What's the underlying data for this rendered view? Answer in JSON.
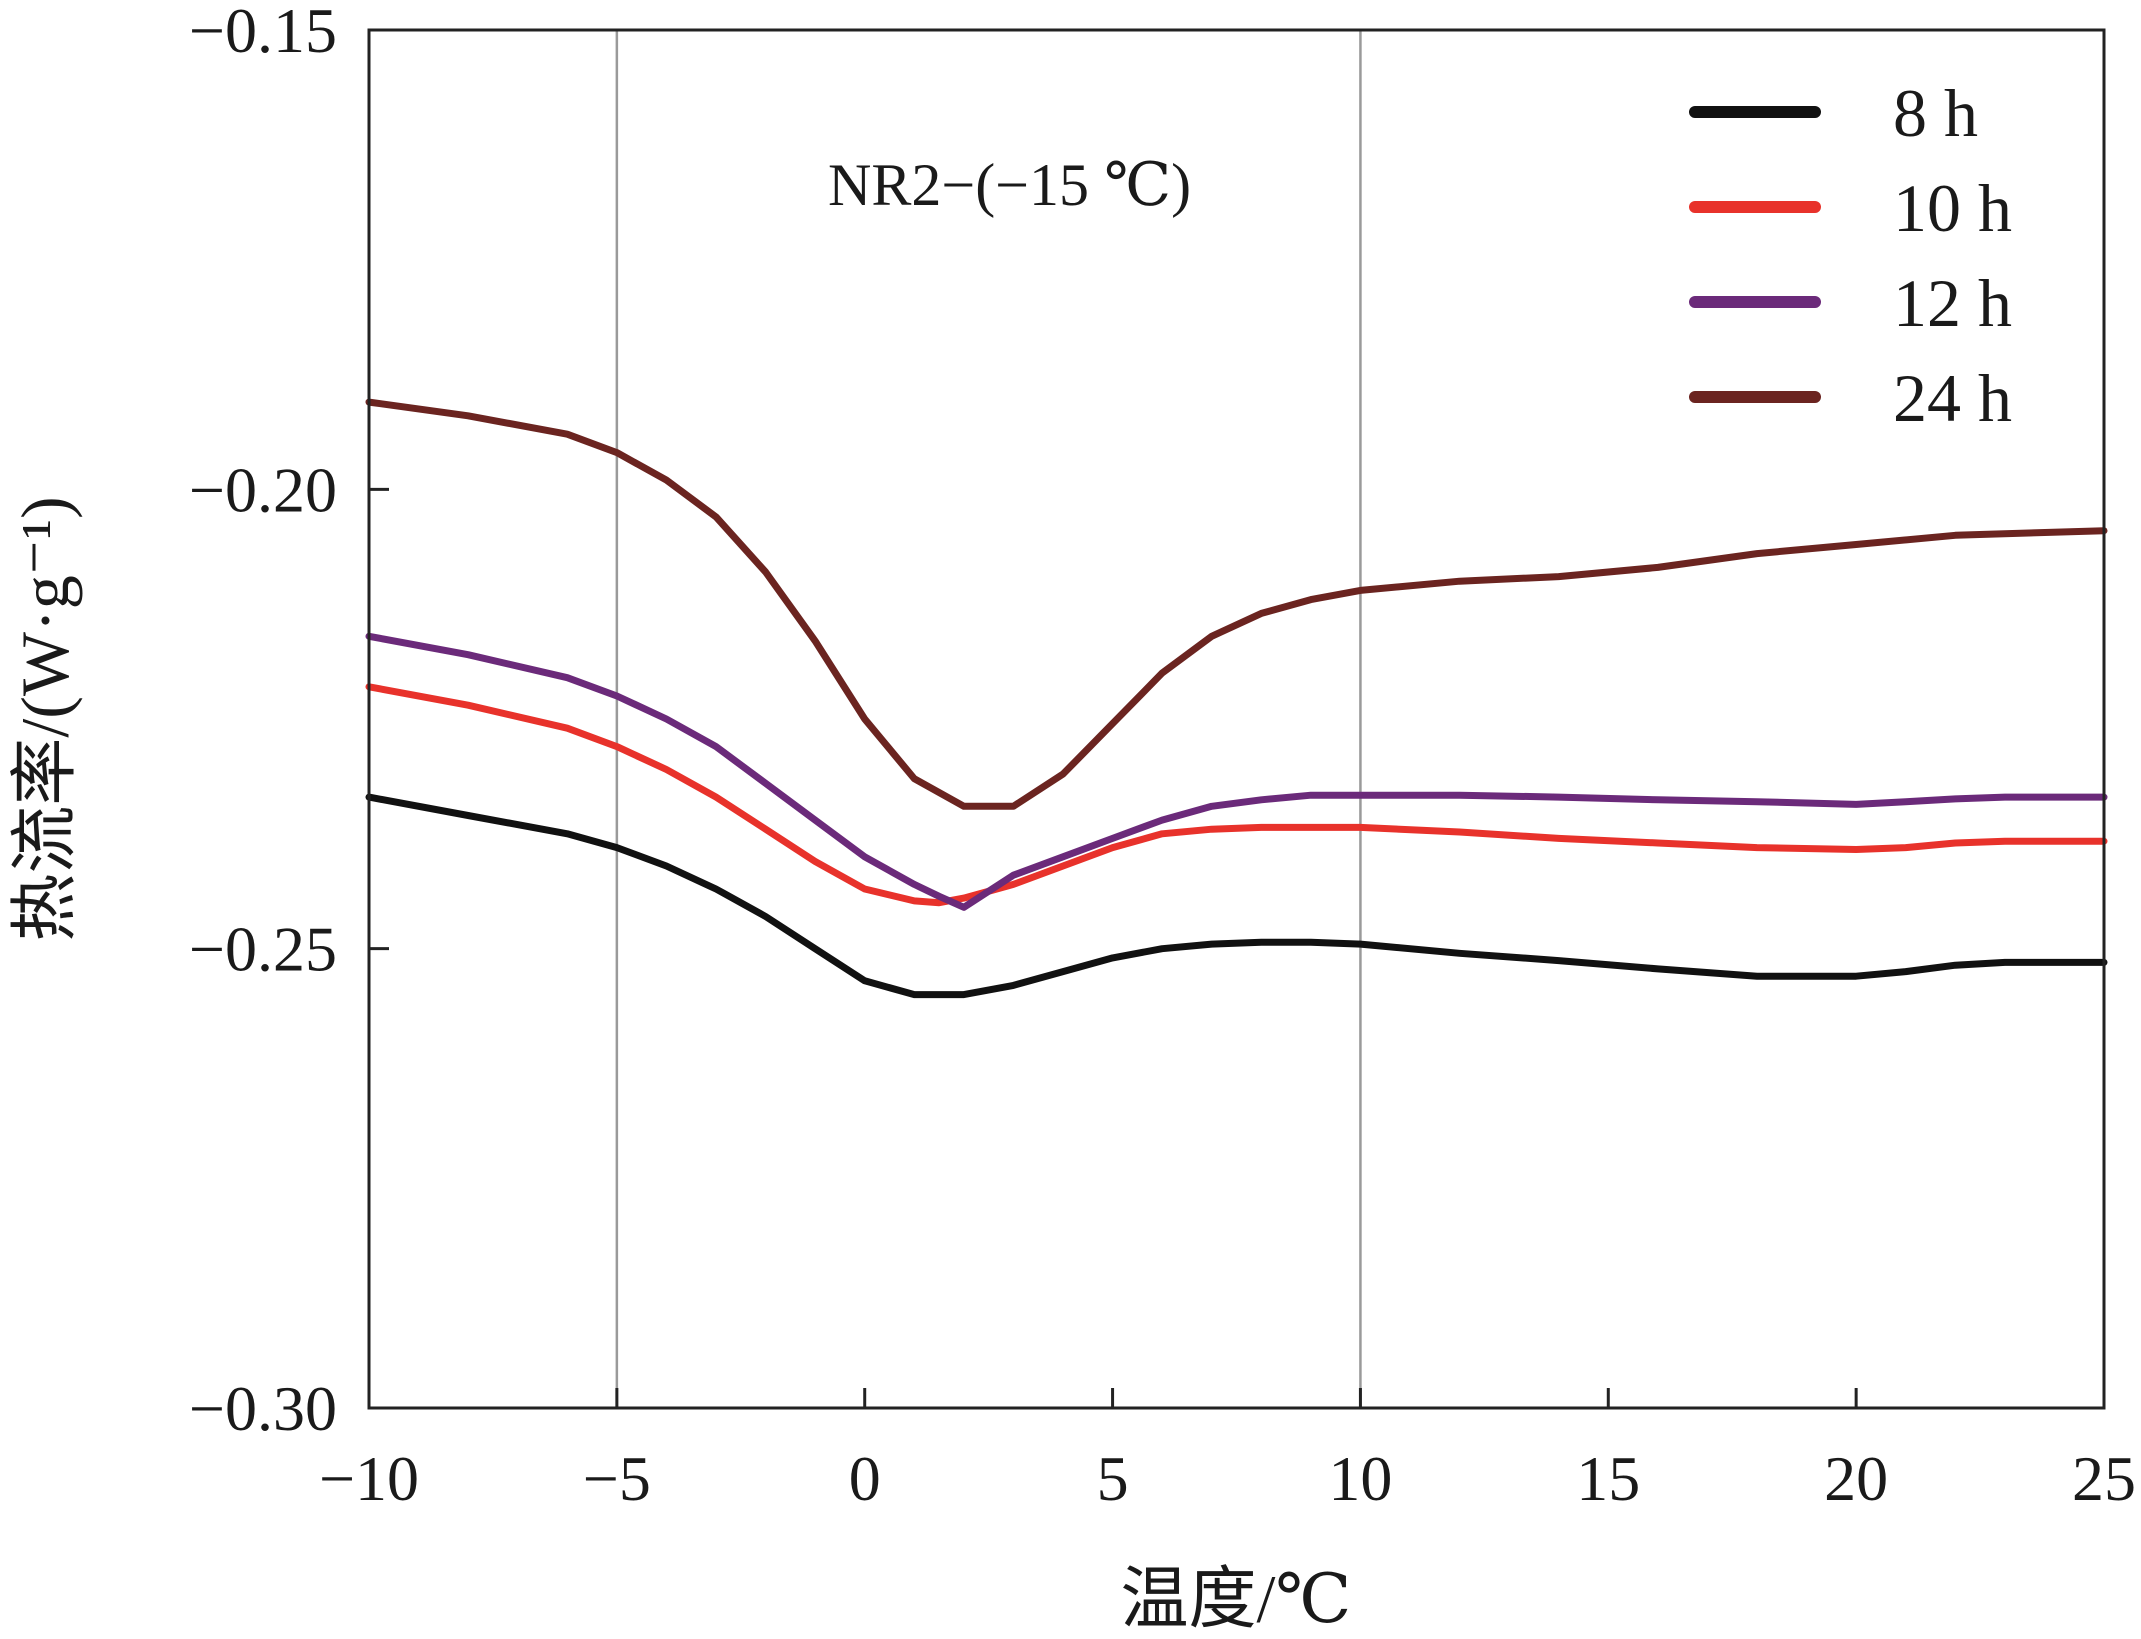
{
  "chart_data": {
    "type": "line",
    "annotation": "NR2−(−15 ℃)",
    "xlabel": "温度/℃",
    "ylabel": "热流率/(W·g⁻¹)",
    "xlim": [
      -10,
      25
    ],
    "ylim": [
      -0.3,
      -0.15
    ],
    "x_ticks": [
      -10,
      -5,
      0,
      5,
      10,
      15,
      20,
      25
    ],
    "x_tick_labels": [
      "−10",
      "−5",
      "0",
      "5",
      "10",
      "15",
      "20",
      "25"
    ],
    "y_ticks": [
      -0.15,
      -0.2,
      -0.25,
      -0.3
    ],
    "y_tick_labels": [
      "−0.15",
      "−0.20",
      "−0.25",
      "−0.30"
    ],
    "vertical_reference_lines": [
      -5,
      10
    ],
    "grid": false,
    "legend_position": "top-right",
    "series": [
      {
        "name": "8 h",
        "color": "#111111",
        "x": [
          -10,
          -8,
          -6,
          -5,
          -4,
          -3,
          -2,
          -1,
          0,
          1,
          2,
          3,
          4,
          5,
          6,
          7,
          8,
          9,
          10,
          12,
          14,
          16,
          18,
          19,
          20,
          21,
          22,
          23,
          25
        ],
        "y": [
          -0.2335,
          -0.2355,
          -0.2375,
          -0.239,
          -0.241,
          -0.2435,
          -0.2465,
          -0.25,
          -0.2535,
          -0.255,
          -0.255,
          -0.254,
          -0.2525,
          -0.251,
          -0.25,
          -0.2495,
          -0.2493,
          -0.2493,
          -0.2495,
          -0.2505,
          -0.2513,
          -0.2522,
          -0.253,
          -0.253,
          -0.253,
          -0.2525,
          -0.2518,
          -0.2515,
          -0.2515
        ]
      },
      {
        "name": "10 h",
        "color": "#e8322b",
        "x": [
          -10,
          -8,
          -6,
          -5,
          -4,
          -3,
          -2,
          -1,
          0,
          1,
          1.5,
          2,
          3,
          4,
          5,
          6,
          7,
          8,
          9,
          10,
          12,
          14,
          16,
          18,
          20,
          21,
          22,
          23,
          25
        ],
        "y": [
          -0.2215,
          -0.2235,
          -0.226,
          -0.228,
          -0.2305,
          -0.2335,
          -0.237,
          -0.2405,
          -0.2435,
          -0.2448,
          -0.245,
          -0.2445,
          -0.243,
          -0.241,
          -0.239,
          -0.2375,
          -0.237,
          -0.2368,
          -0.2368,
          -0.2368,
          -0.2373,
          -0.238,
          -0.2385,
          -0.239,
          -0.2392,
          -0.239,
          -0.2385,
          -0.2383,
          -0.2383
        ]
      },
      {
        "name": "12 h",
        "color": "#6b2a7a",
        "x": [
          -10,
          -8,
          -6,
          -5,
          -4,
          -3,
          -2,
          -1,
          0,
          1,
          1.5,
          2,
          3,
          4,
          5,
          6,
          7,
          8,
          9,
          10,
          12,
          14,
          16,
          18,
          20,
          21,
          22,
          23,
          25
        ],
        "y": [
          -0.216,
          -0.218,
          -0.2205,
          -0.2225,
          -0.225,
          -0.228,
          -0.232,
          -0.236,
          -0.24,
          -0.243,
          -0.2443,
          -0.2455,
          -0.242,
          -0.24,
          -0.238,
          -0.236,
          -0.2345,
          -0.2338,
          -0.2333,
          -0.2333,
          -0.2333,
          -0.2335,
          -0.2338,
          -0.234,
          -0.2343,
          -0.234,
          -0.2337,
          -0.2335,
          -0.2335
        ]
      },
      {
        "name": "24 h",
        "color": "#6b2420",
        "x": [
          -10,
          -8,
          -6,
          -5,
          -4,
          -3,
          -2,
          -1,
          0,
          1,
          2,
          3,
          4,
          5,
          6,
          7,
          8,
          9,
          10,
          12,
          14,
          16,
          18,
          20,
          22,
          25
        ],
        "y": [
          -0.1905,
          -0.192,
          -0.194,
          -0.196,
          -0.199,
          -0.203,
          -0.209,
          -0.2165,
          -0.225,
          -0.2315,
          -0.2345,
          -0.2345,
          -0.231,
          -0.2255,
          -0.22,
          -0.216,
          -0.2135,
          -0.212,
          -0.211,
          -0.21,
          -0.2095,
          -0.2085,
          -0.207,
          -0.206,
          -0.205,
          -0.2045
        ]
      }
    ]
  }
}
